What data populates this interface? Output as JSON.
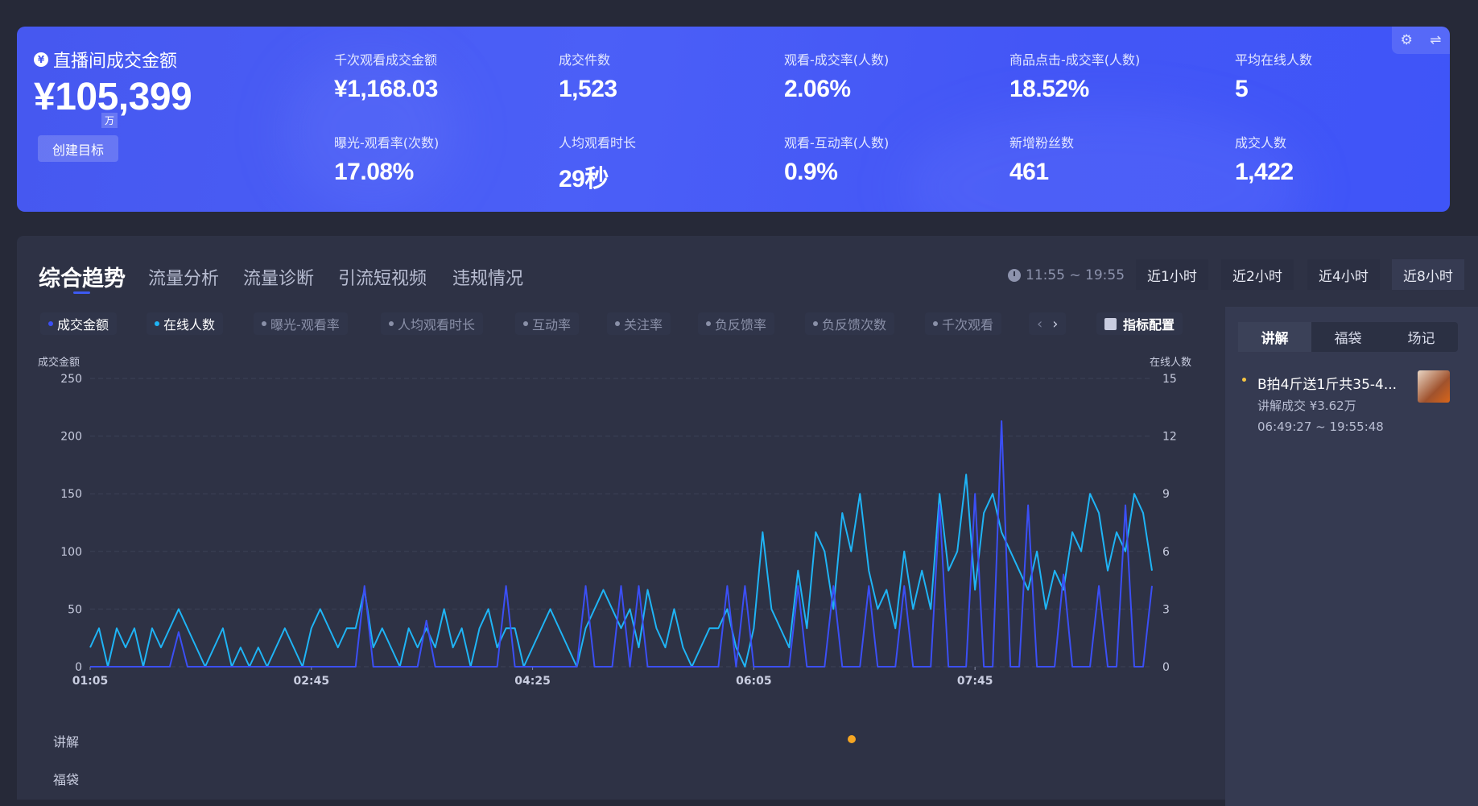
{
  "summary": {
    "title": "直播间成交金额",
    "value": "¥105,399",
    "unit_badge": "万",
    "create_goal_button": "创建目标",
    "metrics": [
      {
        "label": "千次观看成交金额",
        "value": "¥1,168.03"
      },
      {
        "label": "成交件数",
        "value": "1,523"
      },
      {
        "label": "观看-成交率(人数)",
        "value": "2.06%"
      },
      {
        "label": "商品点击-成交率(人数)",
        "value": "18.52%"
      },
      {
        "label": "平均在线人数",
        "value": "5"
      },
      {
        "label": "曝光-观看率(次数)",
        "value": "17.08%"
      },
      {
        "label": "人均观看时长",
        "value": "29秒"
      },
      {
        "label": "观看-互动率(人数)",
        "value": "0.9%"
      },
      {
        "label": "新增粉丝数",
        "value": "461"
      },
      {
        "label": "成交人数",
        "value": "1,422"
      }
    ],
    "settings_icon": "⚙",
    "switch_icon": "⇌"
  },
  "tabs": [
    "综合趋势",
    "流量分析",
    "流量诊断",
    "引流短视频",
    "违规情况"
  ],
  "time_range": {
    "text": "11:55 ~ 19:55",
    "options": [
      "近1小时",
      "近2小时",
      "近4小时",
      "近8小时"
    ],
    "selected": "近8小时"
  },
  "metric_chips": [
    {
      "label": "成交金额",
      "on": true,
      "color": "#3b4ff5"
    },
    {
      "label": "在线人数",
      "on": true,
      "color": "#1fb4f5"
    },
    {
      "label": "曝光-观看率",
      "on": false
    },
    {
      "label": "人均观看时长",
      "on": false
    },
    {
      "label": "互动率",
      "on": false
    },
    {
      "label": "关注率",
      "on": false
    },
    {
      "label": "负反馈率",
      "on": false
    },
    {
      "label": "负反馈次数",
      "on": false
    },
    {
      "label": "千次观看",
      "on": false
    }
  ],
  "chip_nav": {
    "prev": "‹",
    "next": "›"
  },
  "metric_config_button": "指标配置",
  "chart_data": {
    "type": "line",
    "x_range": [
      "01:05",
      "09:05"
    ],
    "x_ticks": [
      "01:05",
      "02:45",
      "04:25",
      "06:05",
      "07:45"
    ],
    "y_left": {
      "label": "成交金额",
      "range": [
        0,
        250
      ],
      "ticks": [
        "0",
        "50",
        "100",
        "150",
        "200",
        "250"
      ]
    },
    "y_right": {
      "label": "在线人数",
      "range": [
        0,
        15
      ],
      "ticks": [
        "0",
        "3",
        "6",
        "9",
        "12",
        "15"
      ]
    },
    "grid": true,
    "series": [
      {
        "name": "成交金额",
        "axis": "left",
        "color": "#3b4ff5",
        "values": [
          0,
          0,
          0,
          0,
          0,
          0,
          0,
          0,
          0,
          0,
          30,
          0,
          0,
          0,
          0,
          0,
          0,
          0,
          0,
          0,
          0,
          0,
          0,
          0,
          0,
          0,
          0,
          0,
          0,
          0,
          0,
          70,
          0,
          0,
          0,
          0,
          0,
          0,
          40,
          0,
          0,
          0,
          0,
          0,
          0,
          0,
          0,
          70,
          0,
          0,
          0,
          0,
          0,
          0,
          0,
          0,
          70,
          0,
          0,
          0,
          70,
          0,
          70,
          0,
          0,
          0,
          0,
          0,
          0,
          0,
          0,
          0,
          70,
          0,
          70,
          0,
          0,
          0,
          0,
          0,
          70,
          0,
          0,
          0,
          70,
          0,
          0,
          0,
          70,
          0,
          0,
          0,
          70,
          0,
          0,
          0,
          140,
          0,
          0,
          0,
          150,
          0,
          0,
          213,
          0,
          0,
          140,
          0,
          0,
          0,
          80,
          0,
          0,
          0,
          70,
          0,
          0,
          140,
          0,
          0,
          70
        ]
      },
      {
        "name": "在线人数",
        "axis": "right",
        "color": "#1fb4f5",
        "values": [
          1,
          2,
          0,
          2,
          1,
          2,
          0,
          2,
          1,
          2,
          3,
          2,
          1,
          0,
          1,
          2,
          0,
          1,
          0,
          1,
          0,
          1,
          2,
          1,
          0,
          2,
          3,
          2,
          1,
          2,
          2,
          4,
          1,
          2,
          1,
          0,
          2,
          1,
          2,
          1,
          3,
          1,
          2,
          0,
          2,
          3,
          1,
          2,
          2,
          0,
          1,
          2,
          3,
          2,
          1,
          0,
          2,
          3,
          4,
          3,
          2,
          3,
          1,
          4,
          2,
          1,
          3,
          1,
          0,
          1,
          2,
          2,
          3,
          1,
          0,
          2,
          7,
          3,
          2,
          1,
          5,
          2,
          7,
          6,
          3,
          8,
          6,
          9,
          5,
          3,
          4,
          2,
          6,
          3,
          5,
          3,
          9,
          5,
          6,
          10,
          4,
          8,
          9,
          7,
          6,
          5,
          4,
          6,
          3,
          5,
          4,
          7,
          6,
          9,
          8,
          5,
          7,
          6,
          9,
          8,
          5
        ]
      }
    ]
  },
  "event_rows": [
    "讲解",
    "福袋"
  ],
  "side_panel": {
    "tabs": [
      "讲解",
      "福袋",
      "场记"
    ],
    "selected": "讲解",
    "items": [
      {
        "title": "B拍4斤送1斤共35-4...",
        "subtitle": "讲解成交 ¥3.62万",
        "time": "06:49:27 ~ 19:55:48"
      }
    ]
  }
}
